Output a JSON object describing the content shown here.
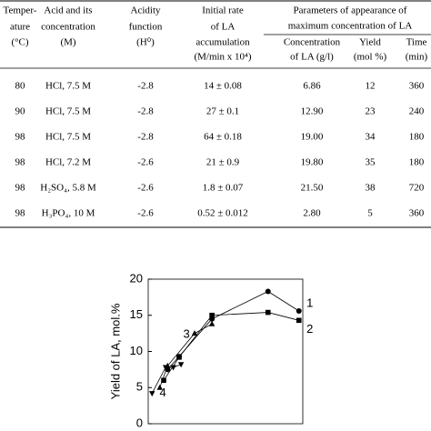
{
  "table": {
    "headers": [
      [
        "Temper-",
        "ature",
        "(°C)"
      ],
      [
        "Acid and its",
        "concentration",
        "(M)"
      ],
      [
        "Acidity",
        "function",
        "(H⁰)"
      ],
      [
        "Initial rate",
        "of LA",
        "accumulation",
        "(M/min x 10⁴)"
      ]
    ],
    "group_header": [
      "Parameters of appearance of",
      "maximum concentration of LA"
    ],
    "subheaders": [
      [
        "Concentration",
        "of LA (g/l)"
      ],
      [
        "Yield",
        "(mol %)"
      ],
      [
        "Time",
        "(min)"
      ]
    ],
    "rows": [
      [
        "80",
        "HCl, 7.5 M",
        "-2.8",
        "14 ± 0.08",
        "6.86",
        "12",
        "360"
      ],
      [
        "90",
        "HCl, 7.5 M",
        "-2.8",
        "27 ± 0.1",
        "12.90",
        "23",
        "240"
      ],
      [
        "98",
        "HCl, 7.5 M",
        "-2.8",
        "64 ± 0.18",
        "19.00",
        "34",
        "180"
      ],
      [
        "98",
        "HCl, 7.2 M",
        "-2.6",
        "21 ± 0.9",
        "19.80",
        "35",
        "180"
      ],
      [
        "98",
        "H₂SO₄, 5.8 M",
        "-2.6",
        "1.8 ± 0.07",
        "21.50",
        "38",
        "720"
      ],
      [
        "98",
        "H₃PO₄, 10 M",
        "-2.6",
        "0.52 ± 0.012",
        "2.80",
        "5",
        "360"
      ]
    ]
  },
  "chart_data": {
    "type": "line",
    "y_label": "Yield of LA, mol.%",
    "xlim": [
      0,
      8
    ],
    "ylim": [
      0,
      20
    ],
    "yticks": [
      0,
      5,
      10,
      15,
      20
    ],
    "series": [
      {
        "name": "1",
        "color": "#000000",
        "marker": "circle",
        "x": [
          1.0,
          1.6,
          3.3,
          6.2,
          7.8
        ],
        "values": [
          7.5,
          9.3,
          14.5,
          18.3,
          15.6
        ]
      },
      {
        "name": "2",
        "color": "#000000",
        "marker": "square",
        "x": [
          0.8,
          1.6,
          3.3,
          6.2,
          7.8
        ],
        "values": [
          6.0,
          9.2,
          15.0,
          15.4,
          14.3
        ]
      },
      {
        "name": "3",
        "color": "#000000",
        "marker": "triangle",
        "x": [
          0.6,
          1.0,
          2.4,
          3.3
        ],
        "values": [
          5.0,
          8.0,
          12.5,
          13.8
        ]
      },
      {
        "name": "4",
        "color": "#000000",
        "marker": "triangle-down",
        "x": [
          0.2,
          0.9,
          1.3,
          1.7
        ],
        "values": [
          4.2,
          7.8,
          7.8,
          8.2
        ]
      }
    ]
  }
}
